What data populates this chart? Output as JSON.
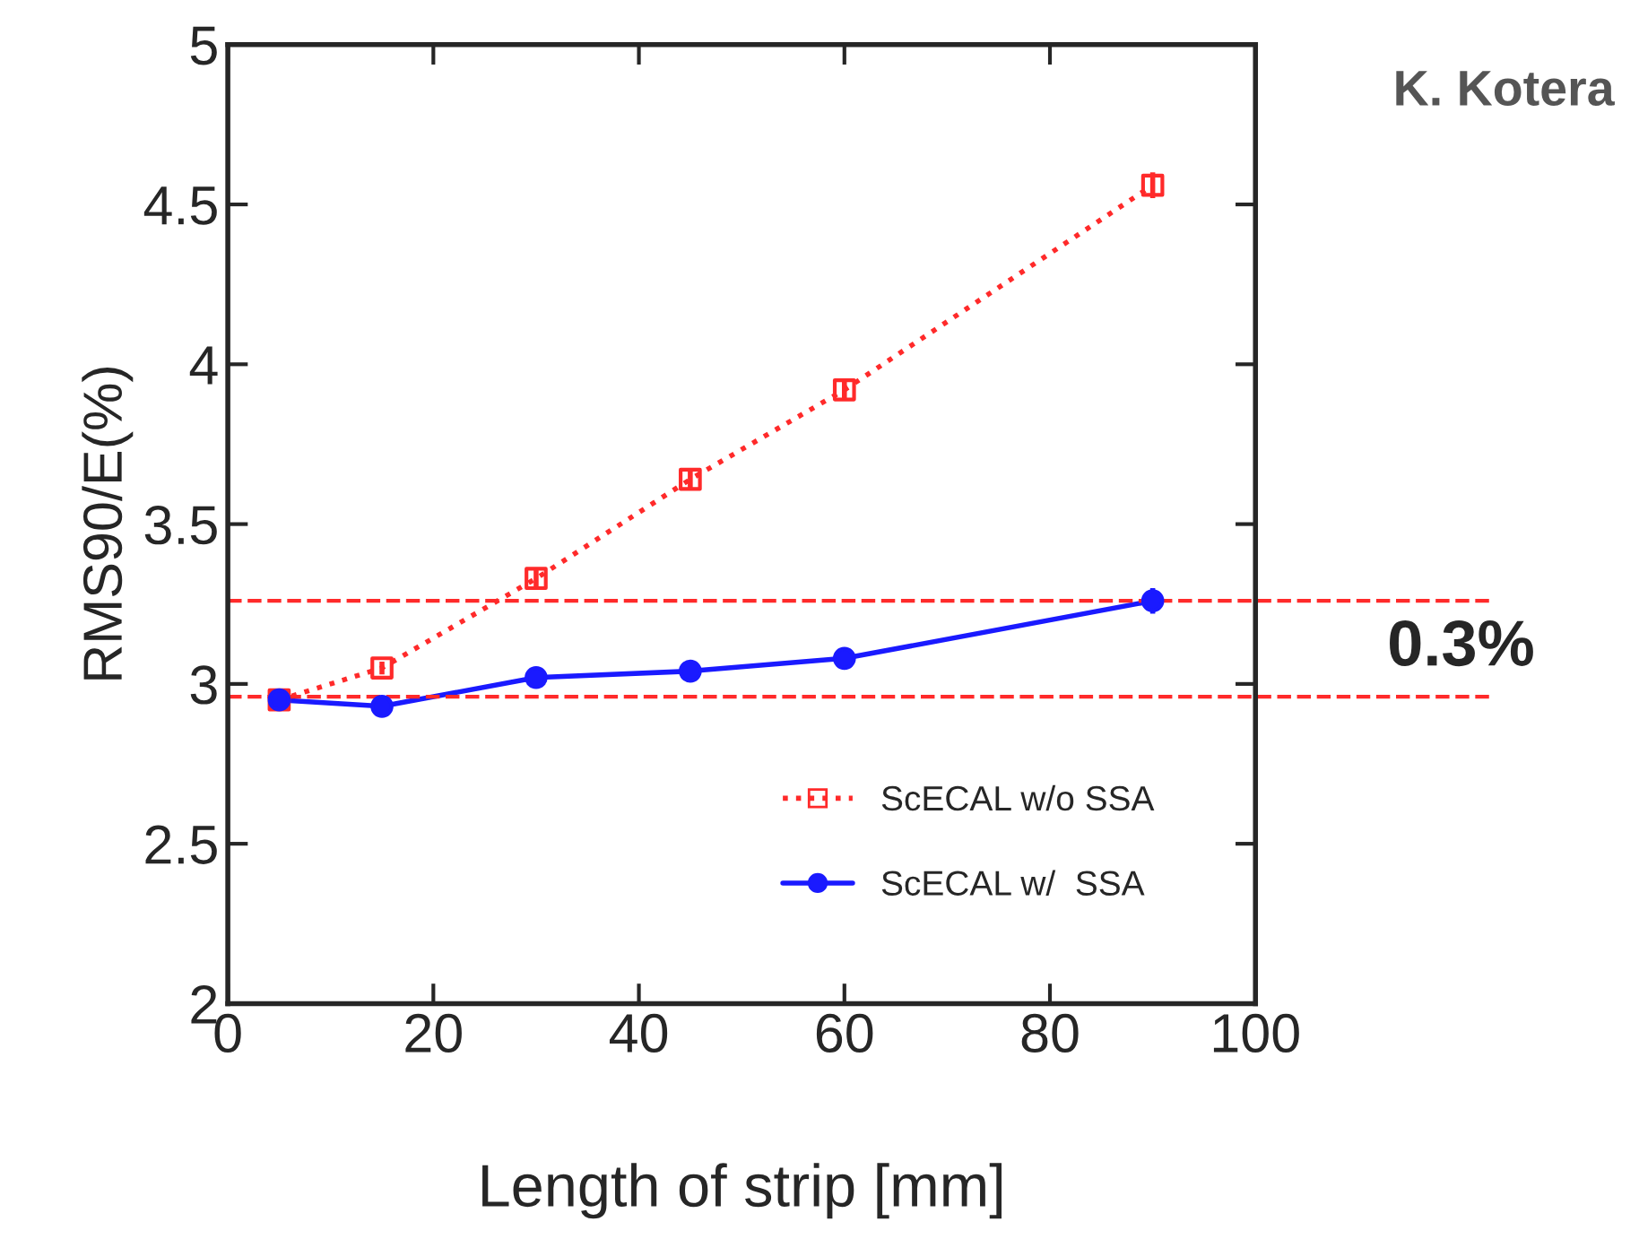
{
  "chart_data": {
    "type": "line",
    "xlabel": "Length of strip [mm]",
    "ylabel": "RMS90/E(%)",
    "x": [
      5,
      15,
      30,
      45,
      60,
      90
    ],
    "series": [
      {
        "name": "ScECAL w/o SSA",
        "color": "#ff2a2a",
        "values": [
          2.95,
          3.05,
          3.33,
          3.64,
          3.92,
          4.56
        ],
        "errors": [
          null,
          0.02,
          0.03,
          0.03,
          0.03,
          0.04
        ],
        "marker": "square",
        "line_style": "dotted"
      },
      {
        "name": "ScECAL w/  SSA",
        "color": "#1a1aff",
        "values": [
          2.95,
          2.93,
          3.02,
          3.04,
          3.08,
          3.26
        ],
        "errors": [
          null,
          0.02,
          0.03,
          0.03,
          0.03,
          0.04
        ],
        "marker": "circle",
        "line_style": "solid"
      }
    ],
    "xlim": [
      0,
      100
    ],
    "xticks": [
      0,
      20,
      40,
      60,
      80,
      100
    ],
    "ylim": [
      2,
      5
    ],
    "yticks": [
      2,
      2.5,
      3,
      3.5,
      4,
      4.5,
      5
    ],
    "ref_lines": [
      {
        "axis": "y",
        "value": 3.26,
        "color": "#ff2a2a",
        "line_style": "dashed"
      },
      {
        "axis": "y",
        "value": 2.96,
        "color": "#ff2a2a",
        "line_style": "dashed"
      }
    ],
    "annotations": [
      "K. Kotera",
      "0.3%"
    ],
    "legend": "bottom right",
    "grid": false
  }
}
